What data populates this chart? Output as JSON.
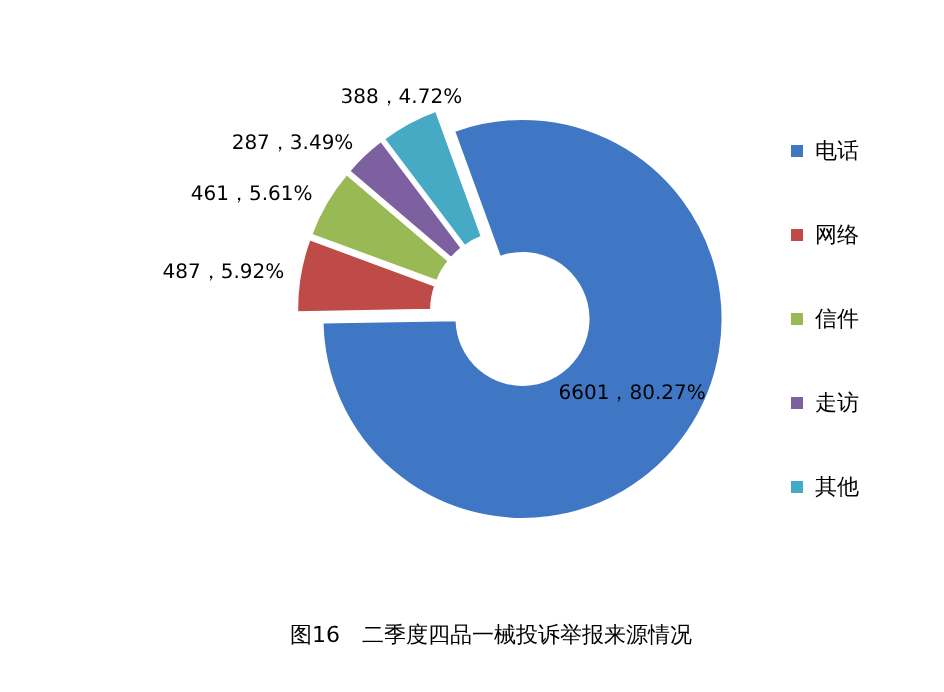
{
  "chart_data": {
    "type": "donut",
    "title": "图16　二季度四品一械投诉举报来源情况",
    "categories": [
      "电话",
      "网络",
      "信件",
      "走访",
      "其他"
    ],
    "values": [
      6601,
      487,
      461,
      287,
      388
    ],
    "value_labels": [
      "6601，80.27%",
      "487，5.92%",
      "461，5.61%",
      "287，3.49%",
      "388，4.72%"
    ],
    "colors": [
      "#3f77c4",
      "#be4b48",
      "#98b954",
      "#7d60a0",
      "#46aac5"
    ],
    "legend": "right"
  }
}
